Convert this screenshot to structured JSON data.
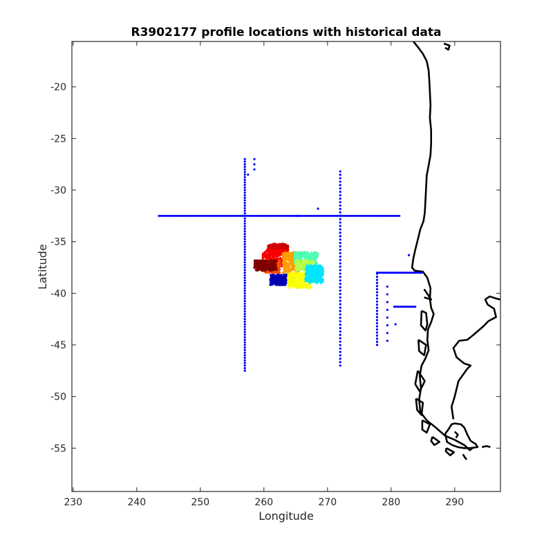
{
  "chart_data": {
    "type": "scatter",
    "title": "R3902177 profile locations with historical data",
    "xlabel": "Longitude",
    "ylabel": "Latitude",
    "xlim": [
      229.8,
      297.2
    ],
    "ylim": [
      -59.2,
      -15.6
    ],
    "x_ticks": [
      230,
      240,
      250,
      260,
      270,
      280,
      290
    ],
    "y_ticks": [
      -20,
      -25,
      -30,
      -35,
      -40,
      -45,
      -50,
      -55
    ],
    "grid": false,
    "legend": "none",
    "colors": {
      "historical": "#0000ff",
      "coastline": "#000000",
      "colormap": "jet"
    },
    "historical_points": {
      "line_lat_neg32_5": {
        "lat": -32.5,
        "lon_start": 243.5,
        "lon_end": 281.5,
        "step": 0.3
      },
      "line_lon_257": {
        "lon": 257,
        "lat_start": -47.5,
        "lat_end": -27.0,
        "step": 0.25
      },
      "line_lon_272": {
        "lon": 272,
        "lat_start": -47.0,
        "lat_end": -28.0,
        "step": 0.33
      },
      "line_lat_neg38": {
        "lat": -38.0,
        "lon_start": 277.8,
        "lon_end": 284.8,
        "step": 0.3
      },
      "line_lat_neg41_3": {
        "lat": -41.3,
        "lon_start": 280.5,
        "lon_end": 284.0,
        "step": 0.3
      },
      "line_lon_277_8": {
        "lon": 277.8,
        "lat_start": -45.0,
        "lat_end": -38.0,
        "step": 0.3
      },
      "line_lon_279_4": {
        "lon": 279.4,
        "lat_start": -44.6,
        "lat_end": -38.8,
        "step": 0.75
      },
      "extra": [
        [
          258.5,
          -27.0
        ],
        [
          258.5,
          -27.5
        ],
        [
          258.5,
          -28.0
        ],
        [
          257.5,
          -28.5
        ],
        [
          268.5,
          -31.8
        ],
        [
          282.8,
          -36.3
        ],
        [
          280.7,
          -43.0
        ],
        [
          284.8,
          -38.0
        ],
        [
          265.3,
          -32.5
        ]
      ]
    },
    "float_profile_clusters": [
      {
        "lon_range": [
          260.6,
          263.8
        ],
        "lat_range": [
          -36.2,
          -35.2
        ],
        "color_idx": 0.92
      },
      {
        "lon_range": [
          259.8,
          263.5
        ],
        "lat_range": [
          -37.4,
          -35.8
        ],
        "color_idx": 0.88
      },
      {
        "lon_range": [
          260.0,
          262.5
        ],
        "lat_range": [
          -38.0,
          -36.8
        ],
        "color_idx": 0.8
      },
      {
        "lon_range": [
          258.5,
          262.0
        ],
        "lat_range": [
          -37.8,
          -36.8
        ],
        "color_idx": 1.0
      },
      {
        "lon_range": [
          263.0,
          265.5
        ],
        "lat_range": [
          -38.5,
          -36.0
        ],
        "color_idx": 0.72
      },
      {
        "lon_range": [
          264.8,
          268.5
        ],
        "lat_range": [
          -37.2,
          -36.0
        ],
        "color_idx": 0.45
      },
      {
        "lon_range": [
          265.0,
          267.8
        ],
        "lat_range": [
          -37.8,
          -36.8
        ],
        "color_idx": 0.55
      },
      {
        "lon_range": [
          263.8,
          267.6
        ],
        "lat_range": [
          -39.5,
          -38.0
        ],
        "color_idx": 0.62
      },
      {
        "lon_range": [
          266.5,
          269.3
        ],
        "lat_range": [
          -39.0,
          -37.3
        ],
        "color_idx": 0.35
      },
      {
        "lon_range": [
          261.0,
          263.5
        ],
        "lat_range": [
          -39.2,
          -38.2
        ],
        "color_idx": 0.05
      }
    ],
    "coastline": [
      [
        [
          283.5,
          -15.6
        ],
        [
          284.3,
          -16.2
        ],
        [
          285.0,
          -16.8
        ],
        [
          285.6,
          -17.5
        ],
        [
          285.9,
          -18.4
        ],
        [
          286.0,
          -19.3
        ],
        [
          286.1,
          -20.5
        ],
        [
          286.2,
          -21.8
        ],
        [
          286.1,
          -23.0
        ],
        [
          286.3,
          -24.2
        ],
        [
          286.3,
          -25.5
        ],
        [
          286.2,
          -26.6
        ],
        [
          285.9,
          -27.6
        ],
        [
          285.6,
          -28.6
        ],
        [
          285.5,
          -29.8
        ],
        [
          285.4,
          -31.0
        ],
        [
          285.3,
          -32.2
        ],
        [
          285.1,
          -33.0
        ],
        [
          284.6,
          -33.8
        ],
        [
          284.2,
          -34.8
        ],
        [
          283.8,
          -35.8
        ],
        [
          283.5,
          -36.6
        ],
        [
          283.3,
          -37.5
        ],
        [
          283.7,
          -37.8
        ],
        [
          285.0,
          -37.9
        ],
        [
          285.7,
          -38.5
        ],
        [
          286.2,
          -39.5
        ],
        [
          286.1,
          -40.5
        ],
        [
          286.3,
          -41.4
        ],
        [
          286.7,
          -42.0
        ],
        [
          286.3,
          -42.8
        ],
        [
          285.8,
          -43.5
        ],
        [
          285.7,
          -44.5
        ],
        [
          285.9,
          -45.5
        ],
        [
          285.4,
          -46.3
        ],
        [
          284.8,
          -47.0
        ],
        [
          284.5,
          -48.0
        ],
        [
          284.7,
          -49.2
        ],
        [
          284.4,
          -50.3
        ],
        [
          284.6,
          -51.5
        ],
        [
          285.6,
          -52.3
        ],
        [
          287.0,
          -53.0
        ],
        [
          288.5,
          -53.8
        ],
        [
          290.0,
          -54.2
        ],
        [
          291.5,
          -54.7
        ],
        [
          292.4,
          -55.2
        ],
        [
          292.8,
          -55.0
        ]
      ],
      [
        [
          289.8,
          -52.2
        ],
        [
          289.5,
          -51.0
        ],
        [
          290.0,
          -50.0
        ],
        [
          290.6,
          -48.5
        ],
        [
          292.0,
          -47.3
        ],
        [
          292.5,
          -47.0
        ],
        [
          291.5,
          -46.8
        ],
        [
          290.3,
          -46.2
        ],
        [
          289.8,
          -45.3
        ],
        [
          290.7,
          -44.6
        ],
        [
          292.0,
          -44.5
        ],
        [
          293.0,
          -44.0
        ],
        [
          294.5,
          -43.2
        ],
        [
          295.3,
          -42.7
        ],
        [
          296.5,
          -42.3
        ],
        [
          296.2,
          -41.5
        ],
        [
          295.2,
          -41.1
        ],
        [
          294.8,
          -40.6
        ],
        [
          295.5,
          -40.3
        ],
        [
          296.5,
          -40.5
        ],
        [
          297.2,
          -40.6
        ]
      ],
      [
        [
          288.5,
          -53.6
        ],
        [
          289.0,
          -53.2
        ],
        [
          289.5,
          -52.7
        ],
        [
          290.0,
          -52.6
        ],
        [
          291.0,
          -52.7
        ],
        [
          291.5,
          -53.0
        ],
        [
          292.0,
          -53.7
        ],
        [
          292.5,
          -54.3
        ],
        [
          293.3,
          -54.6
        ],
        [
          293.6,
          -54.9
        ],
        [
          292.4,
          -55.0
        ],
        [
          291.5,
          -55.0
        ],
        [
          290.5,
          -54.9
        ],
        [
          289.6,
          -54.7
        ],
        [
          288.8,
          -54.4
        ],
        [
          288.5,
          -53.6
        ]
      ],
      [
        [
          291.3,
          -55.6
        ],
        [
          291.6,
          -55.9
        ],
        [
          291.9,
          -56.1
        ]
      ],
      [
        [
          294.3,
          -54.9
        ],
        [
          295.0,
          -54.8
        ],
        [
          295.6,
          -54.9
        ]
      ],
      [
        [
          285.2,
          -39.6
        ],
        [
          286.3,
          -40.6
        ],
        [
          285.2,
          -40.4
        ]
      ],
      [
        [
          284.8,
          -41.7
        ],
        [
          285.5,
          -41.9
        ],
        [
          285.7,
          -43.0
        ],
        [
          285.4,
          -43.6
        ],
        [
          284.7,
          -43.1
        ],
        [
          284.8,
          -41.7
        ]
      ],
      [
        [
          284.3,
          -44.5
        ],
        [
          285.5,
          -45.0
        ],
        [
          285.2,
          -46.0
        ],
        [
          284.4,
          -45.6
        ],
        [
          284.3,
          -44.5
        ]
      ],
      [
        [
          284.2,
          -47.5
        ],
        [
          285.3,
          -48.5
        ],
        [
          284.5,
          -49.5
        ],
        [
          283.8,
          -48.8
        ],
        [
          284.2,
          -47.5
        ]
      ],
      [
        [
          283.9,
          -50.2
        ],
        [
          285.0,
          -50.6
        ],
        [
          284.8,
          -51.8
        ],
        [
          284.1,
          -51.3
        ],
        [
          283.9,
          -50.2
        ]
      ],
      [
        [
          284.9,
          -52.3
        ],
        [
          286.1,
          -52.7
        ],
        [
          285.6,
          -53.5
        ],
        [
          284.9,
          -53.2
        ],
        [
          284.9,
          -52.3
        ]
      ],
      [
        [
          286.5,
          -53.9
        ],
        [
          287.6,
          -54.4
        ],
        [
          286.8,
          -54.7
        ],
        [
          286.3,
          -54.3
        ],
        [
          286.5,
          -53.9
        ]
      ],
      [
        [
          288.7,
          -55.0
        ],
        [
          289.9,
          -55.4
        ],
        [
          289.3,
          -55.7
        ],
        [
          288.6,
          -55.3
        ],
        [
          288.7,
          -55.0
        ]
      ],
      [
        [
          290.0,
          -53.4
        ],
        [
          290.5,
          -53.7
        ],
        [
          290.2,
          -54.0
        ]
      ],
      [
        [
          288.3,
          -15.8
        ],
        [
          289.2,
          -16.0
        ],
        [
          289.0,
          -16.4
        ],
        [
          288.5,
          -16.2
        ]
      ]
    ]
  }
}
